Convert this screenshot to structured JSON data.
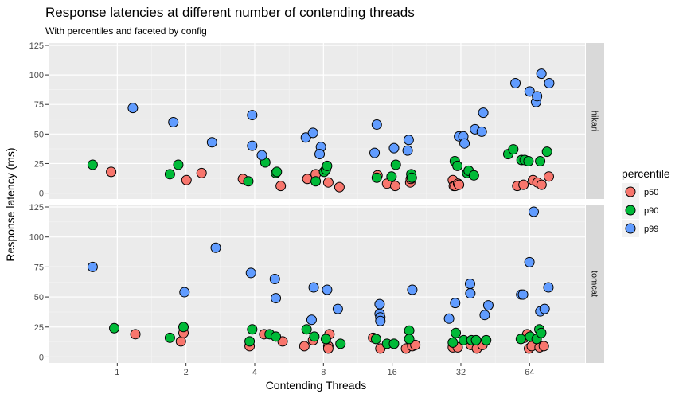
{
  "chart_data": {
    "type": "scatter",
    "title": "Response latencies at different number of contending threads",
    "subtitle": "With percentiles and faceted by config",
    "xlabel": "Contending Threads",
    "ylabel": "Response latency (ms)",
    "x_scale": "log2",
    "x_ticks": [
      1,
      2,
      4,
      8,
      16,
      32,
      64
    ],
    "y_ticks": [
      0,
      25,
      50,
      75,
      100,
      125
    ],
    "ylim": [
      -5,
      127
    ],
    "legend": {
      "title": "percentile",
      "position": "right",
      "entries": [
        {
          "name": "p50",
          "color": "#F8766D"
        },
        {
          "name": "p90",
          "color": "#00BA38"
        },
        {
          "name": "p99",
          "color": "#619CFF"
        }
      ]
    },
    "facets": [
      {
        "label": "hikari",
        "series": [
          {
            "name": "p50",
            "points": [
              [
                0.94,
                18
              ],
              [
                2.01,
                11
              ],
              [
                2.34,
                17
              ],
              [
                3.55,
                12
              ],
              [
                5.2,
                6
              ],
              [
                6.8,
                12
              ],
              [
                7.4,
                16
              ],
              [
                8.4,
                9
              ],
              [
                9.4,
                5
              ],
              [
                13.8,
                15
              ],
              [
                15.2,
                8
              ],
              [
                16.5,
                6
              ],
              [
                19.2,
                9
              ],
              [
                19.3,
                12
              ],
              [
                29.5,
                11
              ],
              [
                29.8,
                6
              ],
              [
                30.2,
                6
              ],
              [
                31.1,
                8
              ],
              [
                31.4,
                7
              ],
              [
                56.5,
                6
              ],
              [
                60.2,
                7
              ],
              [
                66.2,
                11
              ],
              [
                69.3,
                9
              ],
              [
                72.2,
                7
              ],
              [
                77.7,
                14
              ]
            ]
          },
          {
            "name": "p90",
            "points": [
              [
                0.78,
                24
              ],
              [
                1.7,
                16
              ],
              [
                1.85,
                24
              ],
              [
                3.75,
                10
              ],
              [
                4.45,
                26
              ],
              [
                4.95,
                17
              ],
              [
                5.0,
                18
              ],
              [
                7.4,
                10
              ],
              [
                8.05,
                18
              ],
              [
                8.2,
                20
              ],
              [
                8.3,
                23
              ],
              [
                13.7,
                13
              ],
              [
                15.9,
                14
              ],
              [
                16.6,
                24
              ],
              [
                19.4,
                16
              ],
              [
                19.5,
                13
              ],
              [
                30.1,
                27
              ],
              [
                30.9,
                23
              ],
              [
                34.1,
                17
              ],
              [
                34.6,
                19
              ],
              [
                36.5,
                15
              ],
              [
                51.6,
                33
              ],
              [
                54.3,
                37
              ],
              [
                59.0,
                28
              ],
              [
                60.9,
                28
              ],
              [
                63.3,
                27
              ],
              [
                71.2,
                27
              ],
              [
                76.3,
                35
              ]
            ]
          },
          {
            "name": "p99",
            "points": [
              [
                1.17,
                72
              ],
              [
                1.76,
                60
              ],
              [
                2.6,
                43
              ],
              [
                3.9,
                66
              ],
              [
                3.9,
                40
              ],
              [
                4.3,
                32
              ],
              [
                6.7,
                47
              ],
              [
                7.2,
                51
              ],
              [
                7.8,
                39
              ],
              [
                7.7,
                33
              ],
              [
                13.7,
                58
              ],
              [
                13.4,
                34
              ],
              [
                16.3,
                38
              ],
              [
                18.9,
                45
              ],
              [
                18.7,
                36
              ],
              [
                31.4,
                48
              ],
              [
                32.8,
                48
              ],
              [
                33.2,
                42
              ],
              [
                36.9,
                54
              ],
              [
                39.5,
                52
              ],
              [
                40.1,
                68
              ],
              [
                55.5,
                93
              ],
              [
                64.0,
                86
              ],
              [
                68.3,
                77
              ],
              [
                69.0,
                82
              ],
              [
                72.1,
                101
              ],
              [
                78.0,
                93
              ]
            ]
          }
        ]
      },
      {
        "label": "tomcat",
        "series": [
          {
            "name": "p50",
            "points": [
              [
                1.2,
                19
              ],
              [
                1.9,
                13
              ],
              [
                1.95,
                20
              ],
              [
                3.8,
                9
              ],
              [
                4.4,
                19
              ],
              [
                5.3,
                13
              ],
              [
                6.6,
                9
              ],
              [
                7.2,
                14
              ],
              [
                8.4,
                9
              ],
              [
                8.5,
                19
              ],
              [
                8.4,
                7
              ],
              [
                13.2,
                16
              ],
              [
                14.2,
                7
              ],
              [
                18.4,
                7
              ],
              [
                19.6,
                9
              ],
              [
                20.2,
                10
              ],
              [
                29.5,
                8
              ],
              [
                31.0,
                8
              ],
              [
                35.4,
                10
              ],
              [
                37.6,
                7
              ],
              [
                39.8,
                10
              ],
              [
                60.8,
                16
              ],
              [
                62.5,
                19
              ],
              [
                63.6,
                7
              ],
              [
                65.4,
                9
              ],
              [
                70.8,
                8
              ],
              [
                73.9,
                9
              ]
            ]
          },
          {
            "name": "p90",
            "points": [
              [
                0.97,
                24
              ],
              [
                1.7,
                16
              ],
              [
                1.95,
                25
              ],
              [
                3.8,
                13
              ],
              [
                3.9,
                23
              ],
              [
                4.65,
                19
              ],
              [
                4.95,
                17
              ],
              [
                6.75,
                23
              ],
              [
                7.3,
                17
              ],
              [
                8.2,
                15
              ],
              [
                9.5,
                11
              ],
              [
                13.6,
                15
              ],
              [
                15.2,
                11
              ],
              [
                16.3,
                11
              ],
              [
                19.0,
                22
              ],
              [
                19.0,
                15
              ],
              [
                29.5,
                12
              ],
              [
                30.4,
                20
              ],
              [
                32.9,
                14
              ],
              [
                35.6,
                14
              ],
              [
                37.3,
                14
              ],
              [
                41.3,
                14
              ],
              [
                58.6,
                15
              ],
              [
                64.3,
                17
              ],
              [
                68.7,
                15
              ],
              [
                70.6,
                23
              ],
              [
                72.0,
                20
              ]
            ]
          },
          {
            "name": "p99",
            "points": [
              [
                0.78,
                75
              ],
              [
                1.97,
                54
              ],
              [
                2.7,
                91
              ],
              [
                3.85,
                70
              ],
              [
                4.9,
                65
              ],
              [
                4.95,
                49
              ],
              [
                7.25,
                58
              ],
              [
                7.1,
                31
              ],
              [
                8.3,
                56
              ],
              [
                9.25,
                40
              ],
              [
                14.1,
                44
              ],
              [
                14.1,
                36
              ],
              [
                14.2,
                33
              ],
              [
                14.2,
                30
              ],
              [
                19.6,
                56
              ],
              [
                28.4,
                32
              ],
              [
                30.2,
                45
              ],
              [
                35.1,
                61
              ],
              [
                35.2,
                53
              ],
              [
                40.7,
                35
              ],
              [
                42.2,
                43
              ],
              [
                58.8,
                52
              ],
              [
                59.9,
                52
              ],
              [
                63.9,
                79
              ],
              [
                66.7,
                121
              ],
              [
                71.3,
                38
              ],
              [
                74.5,
                40
              ],
              [
                77.4,
                58
              ]
            ]
          }
        ]
      }
    ]
  }
}
